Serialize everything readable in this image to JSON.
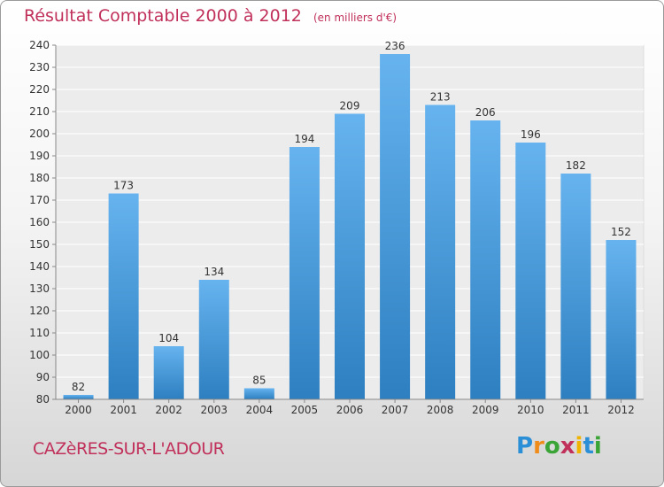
{
  "title": "Résultat Comptable 2000 à 2012",
  "subtitle": "(en milliers d'€)",
  "location": "CAZèRES-SUR-L'ADOUR",
  "logo": {
    "letters": [
      "P",
      "r",
      "o",
      "x",
      "i",
      "t",
      "i"
    ],
    "colors": [
      "#2a8fd6",
      "#f08c1a",
      "#3aa536",
      "#c0305a",
      "#f0b400",
      "#2a8fd6",
      "#3aa536"
    ]
  },
  "colors": {
    "bar_light": "#66b3ef",
    "bar_dark": "#2d7fc0",
    "title": "#c0305a"
  },
  "chart_data": {
    "type": "bar",
    "title": "Résultat Comptable 2000 à 2012",
    "unit": "(en milliers d'€)",
    "categories": [
      "2000",
      "2001",
      "2002",
      "2003",
      "2004",
      "2005",
      "2006",
      "2007",
      "2008",
      "2009",
      "2010",
      "2011",
      "2012"
    ],
    "values": [
      82,
      173,
      104,
      134,
      85,
      194,
      209,
      236,
      213,
      206,
      196,
      182,
      152
    ],
    "ylim": [
      80,
      240
    ],
    "yticks": [
      80,
      90,
      100,
      110,
      120,
      130,
      140,
      150,
      160,
      170,
      180,
      190,
      200,
      210,
      220,
      230,
      240
    ],
    "grid": true
  }
}
